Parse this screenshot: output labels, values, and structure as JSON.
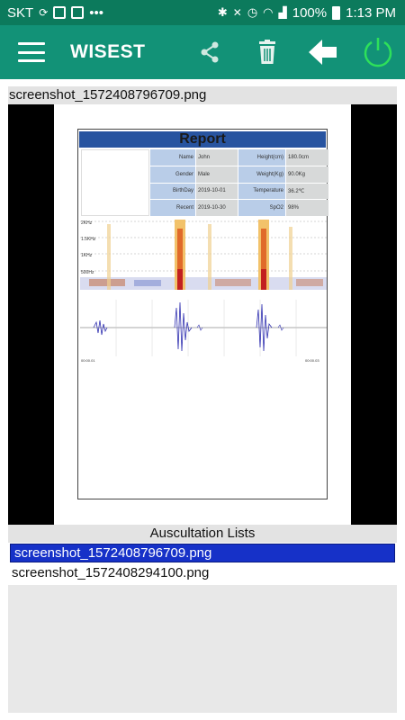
{
  "status_bar": {
    "carrier": "SKT",
    "battery": "100%",
    "time": "1:13 PM"
  },
  "app_bar": {
    "title": "WISEST",
    "icons": [
      "menu-icon",
      "share-icon",
      "trash-icon",
      "back-arrow-icon",
      "power-icon"
    ]
  },
  "preview": {
    "filename": "screenshot_1572408796709.png",
    "report": {
      "title": "Report",
      "fields": [
        {
          "label": "Name",
          "value": "John",
          "label2": "Height(cm)",
          "value2": "180.0cm"
        },
        {
          "label": "Gender",
          "value": "Male",
          "label2": "Weight(Kg)",
          "value2": "90.0Kg"
        },
        {
          "label": "BirthDay",
          "value": "2019-10-01",
          "label2": "Temperature",
          "value2": "36.2℃"
        },
        {
          "label": "Recent",
          "value": "2019-10-30",
          "label2": "SpO2",
          "value2": "98%"
        }
      ],
      "spectrogram_ticks": [
        "2KHz",
        "1.5KHz",
        "1KHz",
        "500Hz"
      ],
      "time_start": "00:00.01",
      "time_end": "00:00.03"
    }
  },
  "auscultation": {
    "header": "Auscultation Lists",
    "items": [
      {
        "name": "screenshot_1572408796709.png",
        "selected": true
      },
      {
        "name": "screenshot_1572408294100.png",
        "selected": false
      }
    ]
  },
  "colors": {
    "status_bar": "#0c7a5c",
    "app_bar": "#129277",
    "power_icon": "#2ee05a",
    "selected_item": "#1631c8"
  }
}
